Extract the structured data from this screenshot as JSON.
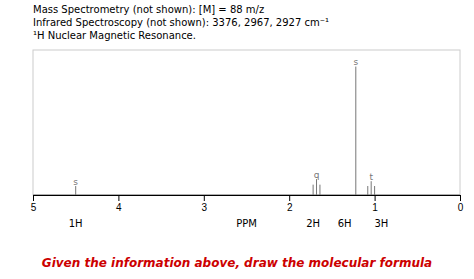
{
  "chart_data": {
    "type": "stem",
    "title": [
      "Mass Spectrometry (not shown):  [M] = 88 m/z",
      "Infrared Spectroscopy (not shown): 3376, 2967, 2927 cm⁻¹",
      "¹H Nuclear Magnetic Resonance."
    ],
    "x_label": "PPM",
    "xlim": [
      5,
      0
    ],
    "xticks": [
      5,
      4,
      3,
      2,
      1,
      0
    ],
    "ylim": [
      0,
      1.05
    ],
    "tick_labels": "x",
    "grid": false,
    "color": "#777777",
    "peaks": [
      {
        "label": "s",
        "label_x": 1.22,
        "label_y": 0.94,
        "x": [
          1.22
        ],
        "values": [
          0.93
        ]
      },
      {
        "label": "s",
        "label_x": 4.5,
        "label_y": 0.075,
        "x": [
          4.5
        ],
        "values": [
          0.065
        ]
      },
      {
        "label": "q",
        "label_x": 1.68,
        "label_y": 0.125,
        "x": [
          1.64,
          1.68,
          1.72
        ],
        "values": [
          0.075,
          0.115,
          0.075
        ]
      },
      {
        "label": "t",
        "label_x": 1.04,
        "label_y": 0.11,
        "x": [
          1.0,
          1.04,
          1.08
        ],
        "values": [
          0.065,
          0.1,
          0.065
        ]
      }
    ],
    "integrations": [
      {
        "x": 4.5,
        "label": "1H"
      },
      {
        "x": 1.72,
        "label": "2H"
      },
      {
        "x": 1.35,
        "label": "6H"
      },
      {
        "x": 0.92,
        "label": "3H"
      }
    ],
    "annotations": [
      {
        "text": "Given the information above, draw the molecular formula",
        "color": "#cc0000"
      }
    ]
  }
}
